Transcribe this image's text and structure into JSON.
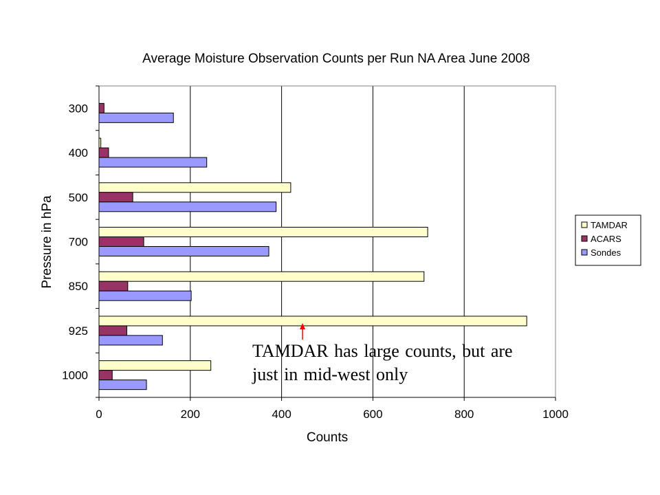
{
  "chart_data": {
    "type": "bar",
    "orientation": "horizontal",
    "title": "Average Moisture Observation Counts per Run NA Area June 2008",
    "xlabel": "Counts",
    "ylabel": "Pressure in hPa",
    "categories": [
      "300",
      "400",
      "500",
      "700",
      "850",
      "925",
      "1000"
    ],
    "x_ticks": [
      "0",
      "200",
      "400",
      "600",
      "800",
      "1000"
    ],
    "xlim": [
      0,
      1000
    ],
    "grid": true,
    "legend_position": "right",
    "series": [
      {
        "name": "TAMDAR",
        "color": "#ffffcc",
        "values": [
          0,
          4,
          420,
          720,
          712,
          937,
          245
        ]
      },
      {
        "name": "ACARS",
        "color": "#993366",
        "values": [
          11,
          21,
          74,
          98,
          63,
          61,
          29
        ]
      },
      {
        "name": "Sondes",
        "color": "#9999ff",
        "values": [
          163,
          236,
          388,
          372,
          202,
          139,
          104
        ]
      }
    ],
    "annotation": {
      "text": "TAMDAR has large counts, but are just in mid-west only",
      "arrow_color": "#ff0000"
    }
  }
}
